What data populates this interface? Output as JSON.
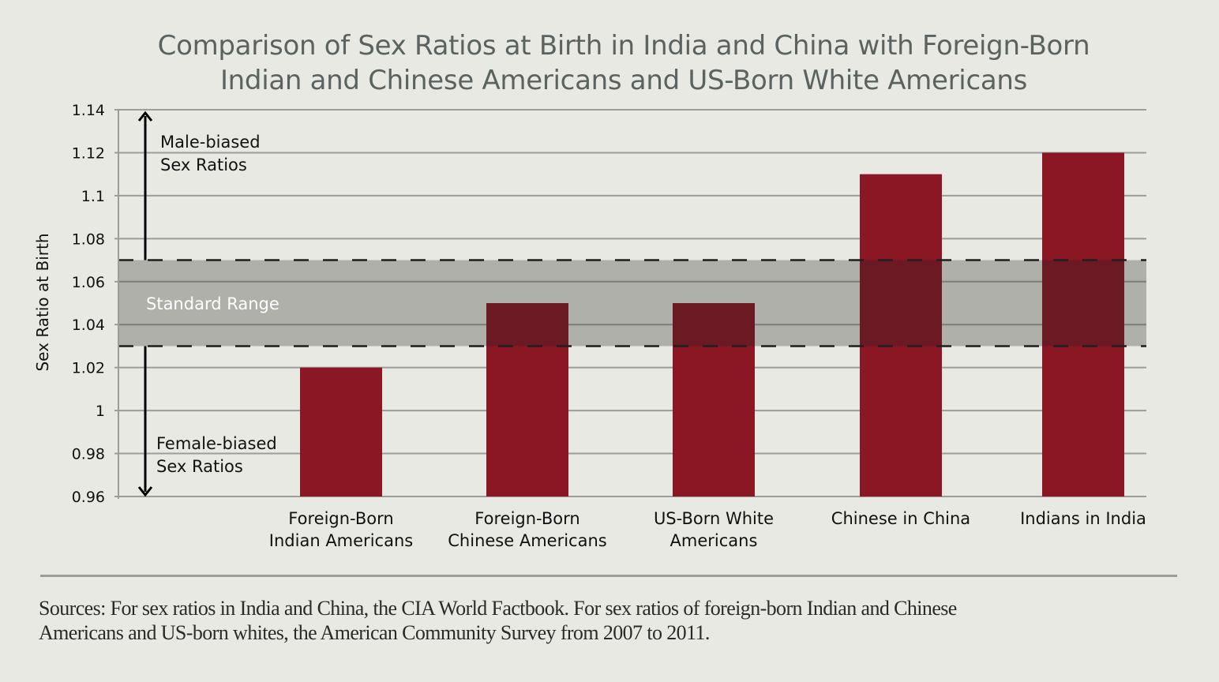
{
  "chart_data": {
    "type": "bar",
    "title_lines": [
      "Comparison of Sex Ratios at Birth in India and China with Foreign-Born",
      "Indian and Chinese Americans and US-Born White Americans"
    ],
    "xlabel": "",
    "ylabel": "Sex Ratio at Birth",
    "ylim": [
      0.96,
      1.14
    ],
    "yticks": [
      0.96,
      0.98,
      1.0,
      1.02,
      1.04,
      1.06,
      1.08,
      1.1,
      1.12,
      1.14
    ],
    "ytick_labels": [
      "0.96",
      "0.98",
      "1",
      "1.02",
      "1.04",
      "1.06",
      "1.08",
      "1.1",
      "1.12",
      "1.14"
    ],
    "grid": true,
    "categories": [
      [
        "Foreign-Born",
        "Indian Americans"
      ],
      [
        "Foreign-Born",
        "Chinese Americans"
      ],
      [
        "US-Born White",
        "Americans"
      ],
      [
        "Chinese in China"
      ],
      [
        "Indians in India"
      ]
    ],
    "values": [
      1.02,
      1.05,
      1.05,
      1.11,
      1.12
    ],
    "bar_color": "#8b1725",
    "bar_overlap_color": "#6b1a24",
    "standard_range": {
      "label": "Standard Range",
      "low": 1.03,
      "high": 1.07,
      "color": "#acada7"
    },
    "annotations": {
      "male_biased": [
        "Male-biased",
        "Sex Ratios"
      ],
      "female_biased": [
        "Female-biased",
        "Sex Ratios"
      ]
    }
  },
  "footer": {
    "sources_lines": [
      "Sources: For sex ratios in India and China, the CIA World Factbook. For sex ratios of foreign-born Indian and Chinese",
      "Americans and US-born whites, the American Community Survey from 2007 to 2011."
    ]
  }
}
